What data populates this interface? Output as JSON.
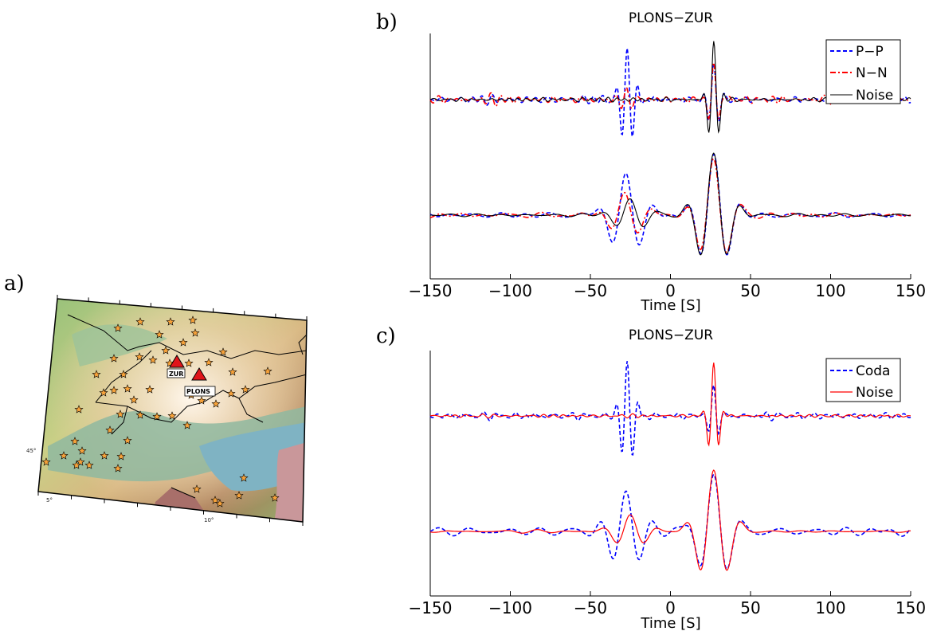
{
  "panels": {
    "a": "a)",
    "b": "b)",
    "c": "c)"
  },
  "map": {
    "stations": [
      {
        "name": "ZUR"
      },
      {
        "name": "PLONS"
      }
    ],
    "lat_tick": "45°",
    "lon_ticks": [
      "5°",
      "10°"
    ],
    "event_symbol": "star-icon",
    "station_symbol": "triangle-icon",
    "colors": {
      "event": "#f7a23a",
      "station": "#e0141a",
      "lake": "#7fb3c3",
      "foreign": "#c9979a"
    }
  },
  "chart_data": [
    {
      "type": "line",
      "title": "PLONS−ZUR",
      "xlabel": "Time [S]",
      "xlim": [
        -150,
        150
      ],
      "xticks": [
        "−150",
        "−100",
        "−50",
        "0",
        "50",
        "100",
        "150"
      ],
      "series": [
        {
          "name": "P−P",
          "color": "#0000ff",
          "dash": "dashed"
        },
        {
          "name": "N−N",
          "color": "#ff0000",
          "dash": "dash-dot"
        },
        {
          "name": "Noise",
          "color": "#000000",
          "dash": "solid"
        }
      ],
      "traces": [
        {
          "series": [
            "P−P",
            "N−N",
            "Noise"
          ],
          "peak_times": [
            -27,
            27
          ],
          "note": "upper trace"
        },
        {
          "series": [
            "P−P",
            "N−N",
            "Noise"
          ],
          "peak_times": [
            -28,
            22,
            27,
            35
          ],
          "note": "lower trace"
        }
      ],
      "legend": "top-right"
    },
    {
      "type": "line",
      "title": "PLONS−ZUR",
      "xlabel": "Time [S]",
      "xlim": [
        -150,
        150
      ],
      "xticks": [
        "−150",
        "−100",
        "−50",
        "0",
        "50",
        "100",
        "150"
      ],
      "series": [
        {
          "name": "Coda",
          "color": "#0000ff",
          "dash": "dashed"
        },
        {
          "name": "Noise",
          "color": "#ff0000",
          "dash": "solid"
        }
      ],
      "legend": "top-right"
    }
  ]
}
